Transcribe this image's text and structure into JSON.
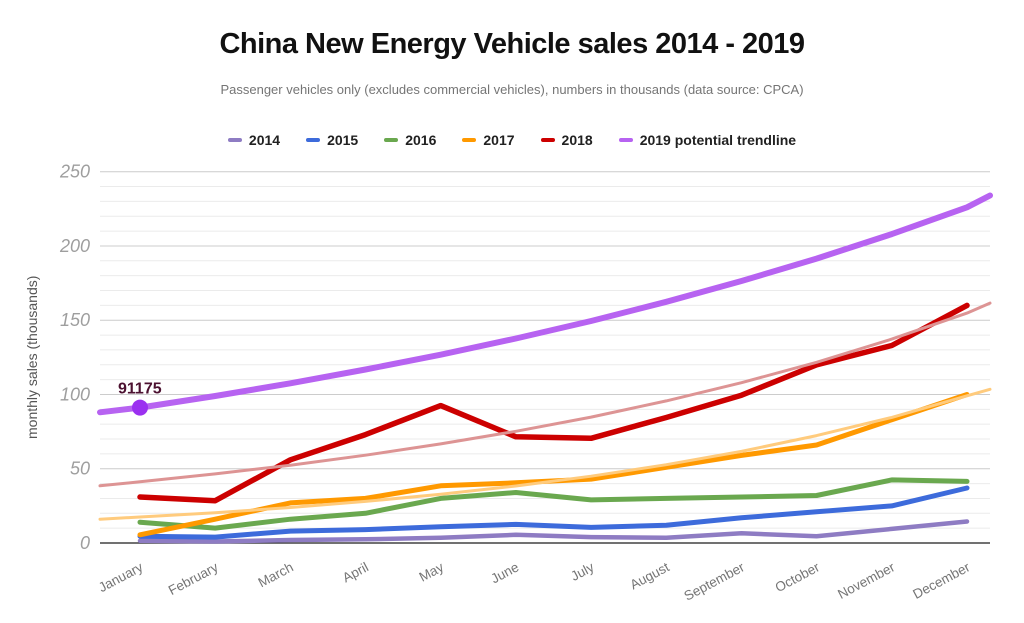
{
  "header": {
    "title": "China New Energy Vehicle sales 2014 - 2019",
    "subtitle": "Passenger vehicles only (excludes commercial vehicles), numbers in thousands (data source: CPCA)"
  },
  "legend": {
    "items": [
      {
        "label": "2014",
        "color": "#8e7cc3"
      },
      {
        "label": "2015",
        "color": "#3d6bdb"
      },
      {
        "label": "2016",
        "color": "#6aa84f"
      },
      {
        "label": "2017",
        "color": "#ff9900"
      },
      {
        "label": "2018",
        "color": "#cc0000"
      },
      {
        "label": "2019 potential trendline",
        "color": "#b763f1"
      }
    ]
  },
  "annotation": {
    "label": "91175",
    "color": "#4c1130"
  },
  "chart_data": {
    "type": "line",
    "title": "China New Energy Vehicle sales 2014 - 2019",
    "subtitle": "Passenger vehicles only (excludes commercial vehicles), numbers in thousands (data source: CPCA)",
    "xlabel": "",
    "ylabel": "monthly sales (thousands)",
    "ylim": [
      0,
      250
    ],
    "y_ticks": [
      0,
      50,
      100,
      150,
      200,
      250
    ],
    "minor_grid_step": 10,
    "grid": "on",
    "legend_position": "top",
    "x": [
      "January",
      "February",
      "March",
      "April",
      "May",
      "June",
      "July",
      "August",
      "September",
      "October",
      "November",
      "December"
    ],
    "series": [
      {
        "name": "2014",
        "color": "#8e7cc3",
        "width": 4.5,
        "values": [
          1.5,
          1,
          2,
          2.5,
          3.5,
          5.5,
          4,
          3.5,
          6.5,
          4.5,
          9.5,
          14.5
        ]
      },
      {
        "name": "2015",
        "color": "#3d6bdb",
        "width": 5,
        "values": [
          4.5,
          4,
          8,
          9,
          11,
          12.5,
          10.5,
          12,
          17,
          21,
          25,
          37
        ]
      },
      {
        "name": "2016",
        "color": "#6aa84f",
        "width": 5,
        "values": [
          14,
          10,
          16,
          20,
          30,
          34,
          29,
          30,
          31,
          32,
          42.5,
          41.5
        ]
      },
      {
        "name": "2017",
        "color": "#ff9900",
        "width": 5,
        "values": [
          5.5,
          16,
          27,
          30,
          38.5,
          40.5,
          43,
          51,
          59,
          66,
          83,
          100
        ]
      },
      {
        "name": "2018",
        "color": "#cc0000",
        "width": 5.5,
        "values": [
          31,
          28.5,
          56,
          73,
          92.5,
          71.5,
          70.5,
          84.5,
          99.5,
          120,
          133,
          160
        ]
      },
      {
        "name": "2017 exponential trendline",
        "color": "#ffcb7d",
        "width": 3,
        "is_trendline": true,
        "left_edge_value": 16,
        "right_edge_value": 103.5,
        "values": [
          17.5,
          20.4,
          23.9,
          28,
          32.8,
          38.4,
          45,
          52.7,
          61.7,
          72.3,
          84.6,
          99.1
        ]
      },
      {
        "name": "2018 exponential trendline",
        "color": "#dd9494",
        "width": 3,
        "is_trendline": true,
        "left_edge_value": 38.5,
        "right_edge_value": 161.5,
        "values": [
          41.2,
          46.5,
          52.4,
          59.1,
          66.7,
          75.2,
          84.8,
          95.7,
          107.9,
          121.7,
          137.3,
          154.8
        ]
      },
      {
        "name": "2019 potential trendline",
        "color": "#b763f1",
        "width": 6,
        "is_trendline": true,
        "left_edge_value": 88,
        "right_edge_value": 234,
        "values": [
          91.175,
          99,
          107.5,
          116.8,
          126.8,
          137.7,
          149.5,
          162.4,
          176.4,
          191.5,
          208,
          226
        ],
        "point": {
          "month_index": 0,
          "value": 91.175,
          "label": "91175",
          "dot_color": "#9b30f0",
          "label_color": "#4c1130"
        }
      }
    ]
  }
}
